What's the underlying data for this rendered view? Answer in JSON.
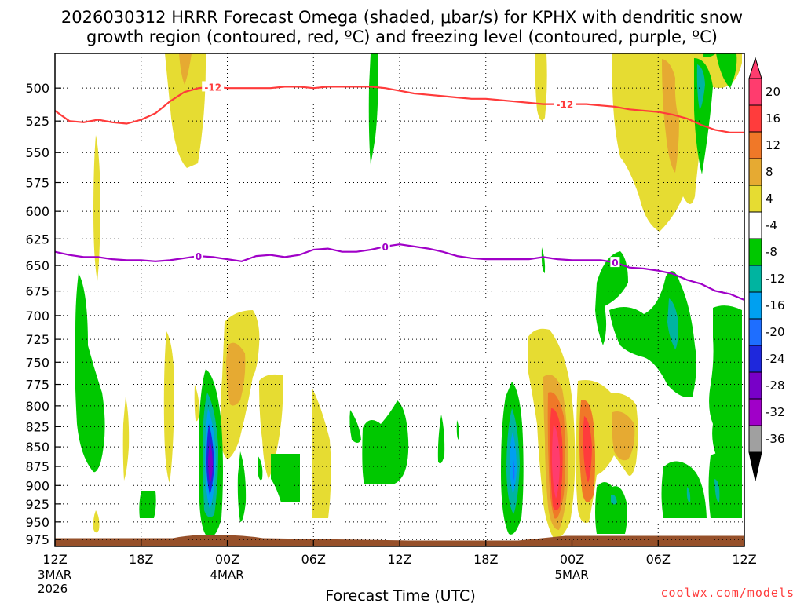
{
  "chart_data": {
    "type": "contour-timeheight",
    "title_line1": "2026030312 HRRR Forecast Omega (shaded, μbar/s) for KPHX with dendritic snow",
    "title_line2": "growth region (contoured, red, ºC) and freezing level (contoured, purple, ºC)",
    "xlabel": "Forecast Time (UTC)",
    "credit": "coolwx.com/models",
    "xlim": [
      0,
      48
    ],
    "ylim": [
      985,
      475
    ],
    "y_ticks": [
      500,
      525,
      550,
      575,
      600,
      625,
      650,
      675,
      700,
      725,
      750,
      775,
      800,
      825,
      850,
      875,
      900,
      925,
      950,
      975
    ],
    "x_ticks": [
      {
        "hour": 0,
        "label": "12Z",
        "date": "3MAR",
        "year": "2026"
      },
      {
        "hour": 6,
        "label": "18Z"
      },
      {
        "hour": 12,
        "label": "00Z",
        "date": "4MAR"
      },
      {
        "hour": 18,
        "label": "06Z"
      },
      {
        "hour": 24,
        "label": "12Z"
      },
      {
        "hour": 30,
        "label": "18Z"
      },
      {
        "hour": 36,
        "label": "00Z",
        "date": "5MAR"
      },
      {
        "hour": 42,
        "label": "06Z"
      },
      {
        "hour": 48,
        "label": "12Z"
      }
    ],
    "colorbar": {
      "labels": [
        "20",
        "16",
        "12",
        "8",
        "4",
        "-4",
        "-8",
        "-12",
        "-16",
        "-20",
        "-24",
        "-28",
        "-32",
        "-36"
      ],
      "bins": [
        {
          "color": "#ff3c6e"
        },
        {
          "color": "#ff3c3c"
        },
        {
          "color": "#f07828"
        },
        {
          "color": "#e6aa32"
        },
        {
          "color": "#e6dc32"
        },
        {
          "color": "#ffffff"
        },
        {
          "color": "#00c800"
        },
        {
          "color": "#00b4a0"
        },
        {
          "color": "#00a0f0"
        },
        {
          "color": "#1e6eff"
        },
        {
          "color": "#1e28dc"
        },
        {
          "color": "#7800c8"
        },
        {
          "color": "#a000c8"
        },
        {
          "color": "#a0a0a0"
        }
      ]
    },
    "dgz_contour": {
      "color": "#ff3b3b",
      "label": "-12",
      "label_positions": [
        11,
        35.5
      ],
      "points": [
        [
          0,
          517
        ],
        [
          1,
          525
        ],
        [
          2,
          526
        ],
        [
          3,
          524
        ],
        [
          4,
          526
        ],
        [
          5,
          527
        ],
        [
          6,
          524
        ],
        [
          7,
          519
        ],
        [
          8,
          510
        ],
        [
          9,
          503
        ],
        [
          10,
          500
        ],
        [
          11,
          499
        ],
        [
          12,
          500
        ],
        [
          13,
          500
        ],
        [
          14,
          500
        ],
        [
          15,
          500
        ],
        [
          16,
          499
        ],
        [
          17,
          499
        ],
        [
          18,
          500
        ],
        [
          19,
          499
        ],
        [
          20,
          499
        ],
        [
          21,
          499
        ],
        [
          22,
          499
        ],
        [
          23,
          500
        ],
        [
          24,
          502
        ],
        [
          25,
          504
        ],
        [
          26,
          505
        ],
        [
          27,
          506
        ],
        [
          28,
          507
        ],
        [
          29,
          508
        ],
        [
          30,
          508
        ],
        [
          31,
          509
        ],
        [
          32,
          510
        ],
        [
          33,
          511
        ],
        [
          34,
          512
        ],
        [
          35,
          512
        ],
        [
          36,
          512
        ],
        [
          37,
          512
        ],
        [
          38,
          513
        ],
        [
          39,
          514
        ],
        [
          40,
          516
        ],
        [
          41,
          517
        ],
        [
          42,
          518
        ],
        [
          43,
          520
        ],
        [
          44,
          523
        ],
        [
          45,
          528
        ],
        [
          46,
          532
        ],
        [
          47,
          534
        ],
        [
          48,
          534
        ]
      ]
    },
    "freezing_contour": {
      "color": "#a000c8",
      "label": "0",
      "label_positions": [
        10,
        23,
        39
      ],
      "points": [
        [
          0,
          637
        ],
        [
          1,
          640
        ],
        [
          2,
          642
        ],
        [
          3,
          642
        ],
        [
          4,
          644
        ],
        [
          5,
          645
        ],
        [
          6,
          645
        ],
        [
          7,
          646
        ],
        [
          8,
          645
        ],
        [
          9,
          643
        ],
        [
          10,
          641
        ],
        [
          11,
          642
        ],
        [
          12,
          644
        ],
        [
          13,
          646
        ],
        [
          14,
          641
        ],
        [
          15,
          640
        ],
        [
          16,
          642
        ],
        [
          17,
          640
        ],
        [
          18,
          635
        ],
        [
          19,
          634
        ],
        [
          20,
          637
        ],
        [
          21,
          637
        ],
        [
          22,
          635
        ],
        [
          23,
          632
        ],
        [
          24,
          630
        ],
        [
          25,
          632
        ],
        [
          26,
          634
        ],
        [
          27,
          637
        ],
        [
          28,
          641
        ],
        [
          29,
          643
        ],
        [
          30,
          644
        ],
        [
          31,
          644
        ],
        [
          32,
          644
        ],
        [
          33,
          644
        ],
        [
          34,
          642
        ],
        [
          35,
          644
        ],
        [
          36,
          645
        ],
        [
          37,
          645
        ],
        [
          38,
          645
        ],
        [
          39,
          647
        ],
        [
          40,
          652
        ],
        [
          41,
          653
        ],
        [
          42,
          655
        ],
        [
          43,
          658
        ],
        [
          44,
          664
        ],
        [
          45,
          668
        ],
        [
          46,
          675
        ],
        [
          47,
          678
        ],
        [
          48,
          684
        ]
      ]
    },
    "terrain": {
      "color": "#96502a",
      "top_pressure": 973
    }
  }
}
